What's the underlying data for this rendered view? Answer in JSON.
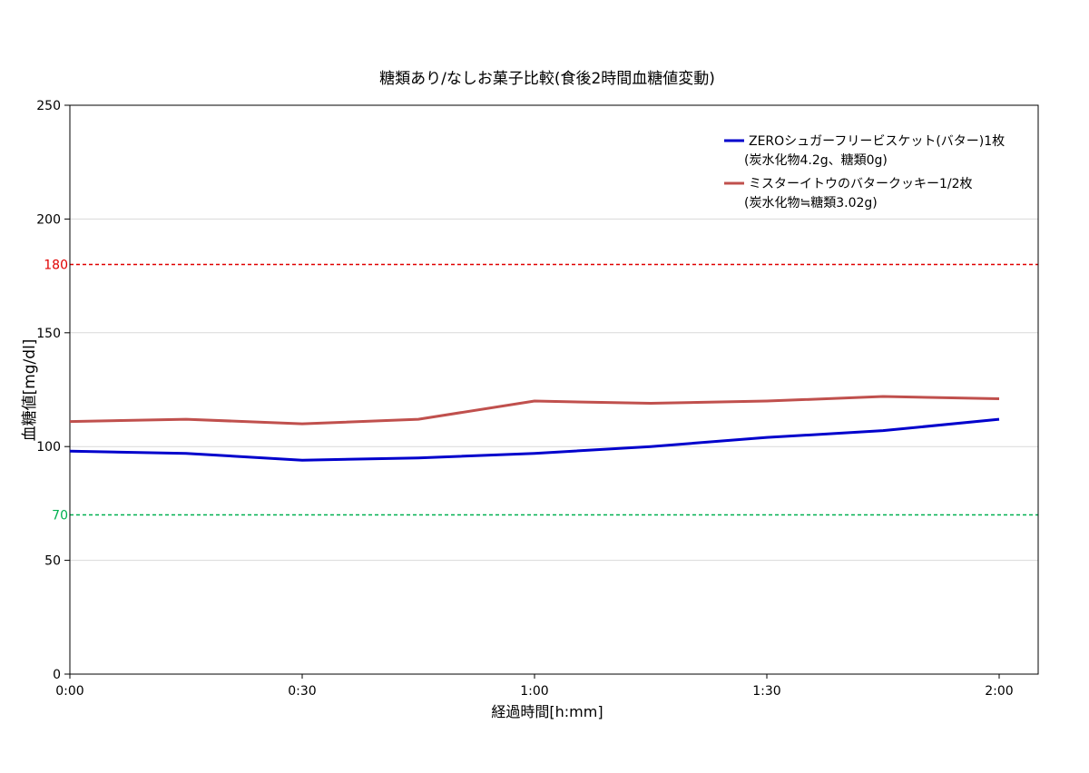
{
  "chart_data": {
    "type": "line",
    "title": "糖類あり/なしお菓子比較(食後2時間血糖値変動)",
    "xlabel": "経過時間[h:mm]",
    "ylabel": "血糖値[mg/dl]",
    "x_minutes": [
      0,
      15,
      30,
      45,
      60,
      75,
      90,
      105,
      120
    ],
    "x_ticks": [
      "0:00",
      "0:30",
      "1:00",
      "1:30",
      "2:00"
    ],
    "y_ticks": [
      "0",
      "50",
      "100",
      "150",
      "200",
      "250"
    ],
    "ylim": [
      0,
      250
    ],
    "xlim": [
      0,
      125
    ],
    "grid": true,
    "legend_position": "top-right",
    "series": [
      {
        "name": "ZEROシュガーフリービスケット(バター)1枚",
        "name_line2": "(炭水化物4.2g、糖類0g)",
        "color": "#0000cc",
        "values": [
          98,
          97,
          94,
          95,
          97,
          100,
          104,
          107,
          112
        ]
      },
      {
        "name": "ミスターイトウのバタークッキー1/2枚",
        "name_line2": "(炭水化物≒糖類3.02g)",
        "color": "#c0504d",
        "values": [
          111,
          112,
          110,
          112,
          120,
          119,
          120,
          122,
          121
        ]
      }
    ],
    "reference_lines": [
      {
        "value": 180,
        "label": "180",
        "color": "#e00000"
      },
      {
        "value": 70,
        "label": "70",
        "color": "#00b050"
      }
    ]
  }
}
